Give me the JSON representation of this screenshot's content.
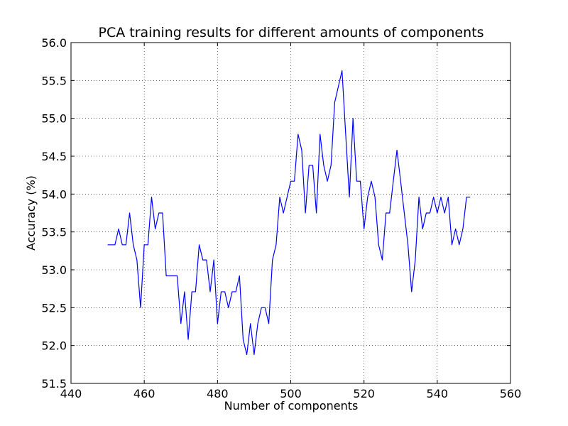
{
  "chart_data": {
    "type": "line",
    "title": "PCA training results for different amounts of components",
    "xlabel": "Number of components",
    "ylabel": "Accuracy (%)",
    "xlim": [
      440,
      560
    ],
    "ylim": [
      51.5,
      56.0
    ],
    "xticks": [
      440,
      460,
      480,
      500,
      520,
      540,
      560
    ],
    "xtick_labels": [
      "440",
      "460",
      "480",
      "500",
      "520",
      "540",
      "560"
    ],
    "yticks": [
      51.5,
      52.0,
      52.5,
      53.0,
      53.5,
      54.0,
      54.5,
      55.0,
      55.5,
      56.0
    ],
    "ytick_labels": [
      "51.5",
      "52.0",
      "52.5",
      "53.0",
      "53.5",
      "54.0",
      "54.5",
      "55.0",
      "55.5",
      "56.0"
    ],
    "grid": true,
    "line_color": "#0000ff",
    "series": [
      {
        "x": [
          450,
          451,
          452,
          453,
          454,
          455,
          456,
          457,
          458,
          459,
          460,
          461,
          462,
          463,
          464,
          465,
          466,
          467,
          468,
          469,
          470,
          471,
          472,
          473,
          474,
          475,
          476,
          477,
          478,
          479,
          480,
          481,
          482,
          483,
          484,
          485,
          486,
          487,
          488,
          489,
          490,
          491,
          492,
          493,
          494,
          495,
          496,
          497,
          498,
          499,
          500,
          501,
          502,
          503,
          504,
          505,
          506,
          507,
          508,
          509,
          510,
          511,
          512,
          513,
          514,
          515,
          516,
          517,
          518,
          519,
          520,
          521,
          522,
          523,
          524,
          525,
          526,
          527,
          528,
          529,
          530,
          531,
          532,
          533,
          534,
          535,
          536,
          537,
          538,
          539,
          540,
          541,
          542,
          543,
          544,
          545,
          546,
          547,
          548,
          549
        ],
        "values": [
          53.33,
          53.33,
          53.33,
          53.54,
          53.33,
          53.33,
          53.75,
          53.33,
          53.13,
          52.5,
          53.33,
          53.33,
          53.96,
          53.54,
          53.75,
          53.75,
          52.92,
          52.92,
          52.92,
          52.92,
          52.29,
          52.71,
          52.08,
          52.71,
          52.71,
          53.33,
          53.13,
          53.13,
          52.71,
          53.13,
          52.29,
          52.71,
          52.71,
          52.5,
          52.71,
          52.71,
          52.92,
          52.08,
          51.88,
          52.29,
          51.88,
          52.29,
          52.5,
          52.5,
          52.29,
          53.13,
          53.33,
          53.96,
          53.75,
          53.96,
          54.17,
          54.17,
          54.79,
          54.58,
          53.75,
          54.38,
          54.38,
          53.75,
          54.79,
          54.38,
          54.17,
          54.38,
          55.21,
          55.42,
          55.63,
          54.79,
          53.96,
          55.0,
          54.17,
          54.17,
          53.54,
          53.96,
          54.17,
          53.96,
          53.33,
          53.13,
          53.75,
          53.75,
          54.17,
          54.58,
          54.17,
          53.75,
          53.33,
          52.71,
          53.13,
          53.96,
          53.54,
          53.75,
          53.75,
          53.96,
          53.75,
          53.96,
          53.75,
          53.96,
          53.33,
          53.54,
          53.33,
          53.54,
          53.96,
          53.96
        ]
      }
    ]
  }
}
